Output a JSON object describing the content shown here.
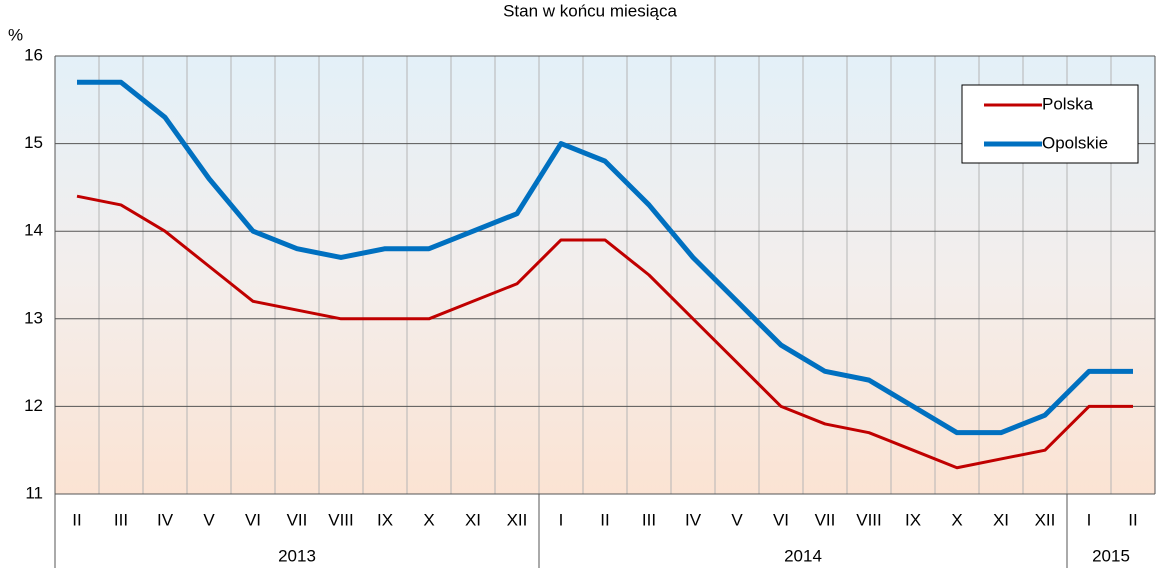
{
  "chart_data": {
    "type": "line",
    "title": "Stan w końcu miesiąca",
    "y_label": "%",
    "categories": [
      "II",
      "III",
      "IV",
      "V",
      "VI",
      "VII",
      "VIII",
      "IX",
      "X",
      "XI",
      "XII",
      "I",
      "II",
      "III",
      "IV",
      "V",
      "VI",
      "VII",
      "VIII",
      "IX",
      "X",
      "XI",
      "XII",
      "I",
      "II"
    ],
    "groups": [
      "2013",
      "2014",
      "2015"
    ],
    "series": [
      {
        "name": "Polska",
        "color": "#c00000",
        "values": [
          14.4,
          14.3,
          14.0,
          13.6,
          13.2,
          13.1,
          13.0,
          13.0,
          13.0,
          13.2,
          13.4,
          13.9,
          13.9,
          13.5,
          13.0,
          12.5,
          12.0,
          11.8,
          11.7,
          11.5,
          11.3,
          11.4,
          11.5,
          12.0,
          12.0
        ]
      },
      {
        "name": "Opolskie",
        "color": "#0070c0",
        "values": [
          15.7,
          15.7,
          15.3,
          14.6,
          14.0,
          13.8,
          13.7,
          13.8,
          13.8,
          14.0,
          14.2,
          15.0,
          14.8,
          14.3,
          13.7,
          13.2,
          12.7,
          12.4,
          12.3,
          12.0,
          11.7,
          11.7,
          11.9,
          12.4,
          12.4
        ]
      }
    ],
    "ylim": [
      11,
      16
    ],
    "yticks": [
      11,
      12,
      13,
      14,
      15,
      16
    ],
    "grid": true,
    "legend": "top-right"
  }
}
